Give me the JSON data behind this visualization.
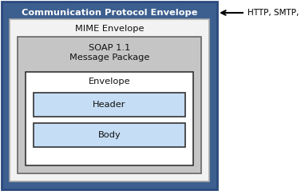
{
  "comm_protocol_label": "Communication Protocol Envelope",
  "mime_label": "MIME Envelope",
  "soap_label": "SOAP 1.1\nMessage Package",
  "envelope_label": "Envelope",
  "header_label": "Header",
  "body_label": "Body",
  "annotation_label": "HTTP, SMTP, ...",
  "comm_bg": "#3d5f8f",
  "mime_bg": "#f2f2f2",
  "soap_bg": "#c5c5c5",
  "envelope_bg": "#ffffff",
  "inner_box_bg": "#c5ddf5",
  "comm_text_color": "#ffffff",
  "other_text_color": "#111111",
  "comm_border": "#2a4a7c",
  "mime_border": "#aaaaaa",
  "soap_border": "#666666",
  "envelope_border": "#333333",
  "inner_border": "#333333",
  "figsize": [
    3.77,
    2.39
  ],
  "dpi": 100
}
